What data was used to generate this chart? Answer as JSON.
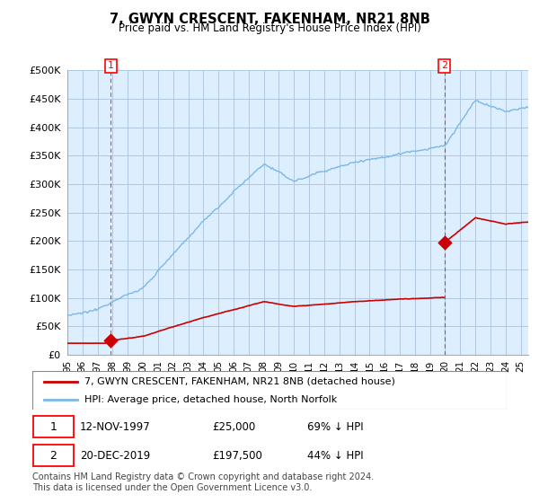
{
  "title": "7, GWYN CRESCENT, FAKENHAM, NR21 8NB",
  "subtitle": "Price paid vs. HM Land Registry's House Price Index (HPI)",
  "sale1_price": 25000,
  "sale1_label": "1",
  "sale1_pct": "69% ↓ HPI",
  "sale1_display": "12-NOV-1997",
  "sale2_price": 197500,
  "sale2_label": "2",
  "sale2_pct": "44% ↓ HPI",
  "sale2_display": "20-DEC-2019",
  "legend_line1": "7, GWYN CRESCENT, FAKENHAM, NR21 8NB (detached house)",
  "legend_line2": "HPI: Average price, detached house, North Norfolk",
  "footer": "Contains HM Land Registry data © Crown copyright and database right 2024.\nThis data is licensed under the Open Government Licence v3.0.",
  "hpi_color": "#7ab8e8",
  "price_color": "#cc0000",
  "bg_color": "#ddeeff",
  "grid_color": "#b0c8e0",
  "ylim": [
    0,
    500000
  ],
  "yticks": [
    0,
    50000,
    100000,
    150000,
    200000,
    250000,
    300000,
    350000,
    400000,
    450000,
    500000
  ],
  "ytick_labels": [
    "£0",
    "£50K",
    "£100K",
    "£150K",
    "£200K",
    "£250K",
    "£300K",
    "£350K",
    "£400K",
    "£450K",
    "£500K"
  ],
  "xtick_labels": [
    "95",
    "96",
    "97",
    "98",
    "99",
    "00",
    "01",
    "02",
    "03",
    "04",
    "05",
    "06",
    "07",
    "08",
    "09",
    "10",
    "11",
    "12",
    "13",
    "14",
    "15",
    "16",
    "17",
    "18",
    "19",
    "20",
    "21",
    "22",
    "23",
    "24",
    "25"
  ],
  "xlim_start": 1995.0,
  "xlim_end": 2025.5,
  "sale1_t": 1997.875,
  "sale2_t": 2019.958
}
